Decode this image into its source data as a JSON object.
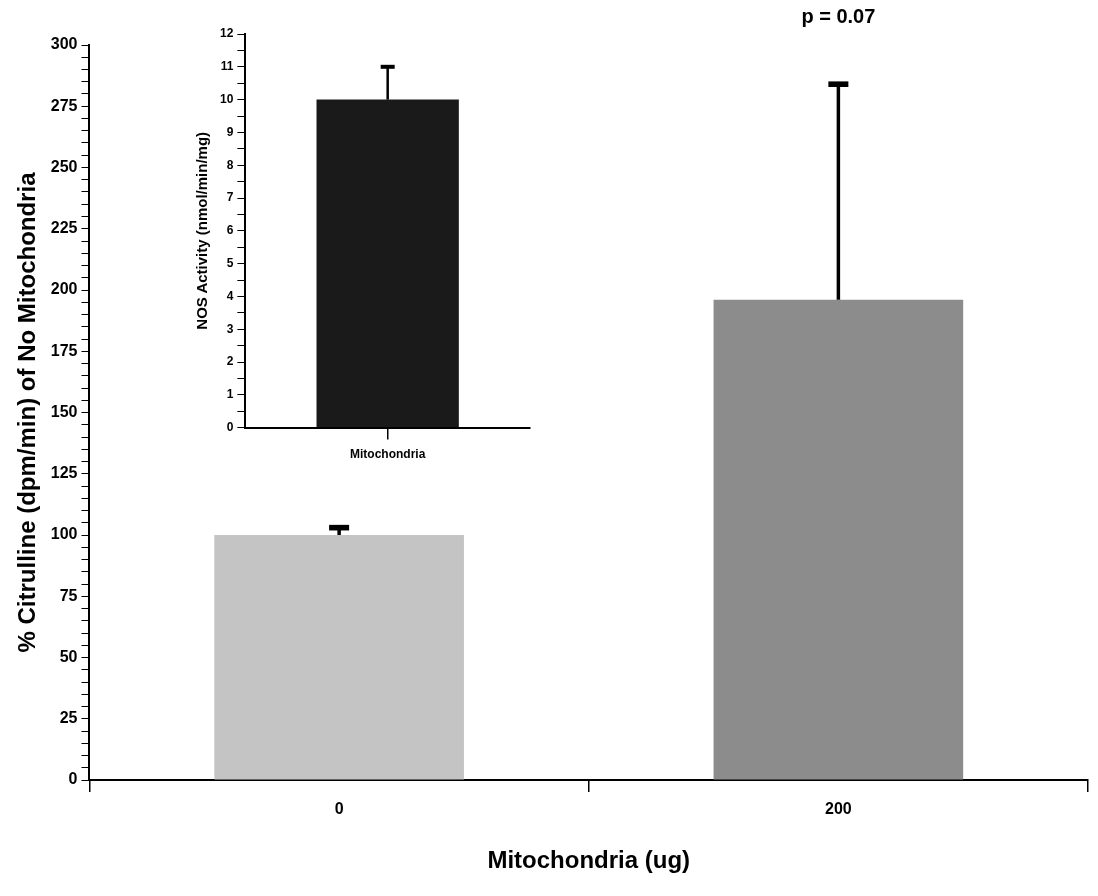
{
  "chart_data": [
    {
      "type": "bar",
      "xlabel": "Mitochondria (ug)",
      "ylabel": "% Citrulline (dpm/min) of No Mitochondria",
      "categories": [
        "0",
        "200"
      ],
      "values": [
        100,
        196
      ],
      "errors": [
        3,
        88
      ],
      "colors": [
        "#c4c4c4",
        "#8c8c8c"
      ],
      "ylim": [
        0,
        300
      ],
      "yticks": [
        0,
        {
          "value": 5,
          "label": null
        },
        {
          "value": 10,
          "label": null
        },
        {
          "value": 15,
          "label": null
        },
        {
          "value": 20,
          "label": null
        },
        25,
        {
          "value": 30,
          "label": null
        },
        {
          "value": 35,
          "label": null
        },
        {
          "value": 40,
          "label": null
        },
        {
          "value": 45,
          "label": null
        },
        50,
        {
          "value": 55,
          "label": null
        },
        {
          "value": 60,
          "label": null
        },
        {
          "value": 65,
          "label": null
        },
        {
          "value": 70,
          "label": null
        },
        75,
        {
          "value": 80,
          "label": null
        },
        {
          "value": 85,
          "label": null
        },
        {
          "value": 90,
          "label": null
        },
        {
          "value": 95,
          "label": null
        },
        100,
        {
          "value": 105,
          "label": null
        },
        {
          "value": 110,
          "label": null
        },
        {
          "value": 115,
          "label": null
        },
        {
          "value": 120,
          "label": null
        },
        125,
        {
          "value": 130,
          "label": null
        },
        {
          "value": 135,
          "label": null
        },
        {
          "value": 140,
          "label": null
        },
        {
          "value": 145,
          "label": null
        },
        150,
        {
          "value": 155,
          "label": null
        },
        {
          "value": 160,
          "label": null
        },
        {
          "value": 165,
          "label": null
        },
        {
          "value": 170,
          "label": null
        },
        175,
        {
          "value": 180,
          "label": null
        },
        {
          "value": 185,
          "label": null
        },
        {
          "value": 190,
          "label": null
        },
        {
          "value": 195,
          "label": null
        },
        200,
        {
          "value": 205,
          "label": null
        },
        {
          "value": 210,
          "label": null
        },
        {
          "value": 215,
          "label": null
        },
        {
          "value": 220,
          "label": null
        },
        225,
        {
          "value": 230,
          "label": null
        },
        {
          "value": 235,
          "label": null
        },
        {
          "value": 240,
          "label": null
        },
        {
          "value": 245,
          "label": null
        },
        250,
        {
          "value": 255,
          "label": null
        },
        {
          "value": 260,
          "label": null
        },
        {
          "value": 265,
          "label": null
        },
        {
          "value": 270,
          "label": null
        },
        275,
        {
          "value": 280,
          "label": null
        },
        {
          "value": 285,
          "label": null
        },
        {
          "value": 290,
          "label": null
        },
        {
          "value": 295,
          "label": null
        },
        300
      ],
      "annotations": [
        "p = 0.07"
      ]
    },
    {
      "type": "bar",
      "ylabel": "NOS Activity (nmol/min/mg)",
      "categories": [
        "Mitochondria"
      ],
      "values": [
        10
      ],
      "errors": [
        1
      ],
      "colors": [
        "#1a1a1a"
      ],
      "ylim": [
        0,
        12
      ],
      "yticks": [
        0,
        {
          "value": 0.5,
          "label": null
        },
        1,
        {
          "value": 1.5,
          "label": null
        },
        2,
        {
          "value": 2.5,
          "label": null
        },
        3,
        {
          "value": 3.5,
          "label": null
        },
        4,
        {
          "value": 4.5,
          "label": null
        },
        5,
        {
          "value": 5.5,
          "label": null
        },
        6,
        {
          "value": 6.5,
          "label": null
        },
        7,
        {
          "value": 7.5,
          "label": null
        },
        8,
        {
          "value": 8.5,
          "label": null
        },
        9,
        {
          "value": 9.5,
          "label": null
        },
        10,
        {
          "value": 10.5,
          "label": null
        },
        11,
        {
          "value": 11.5,
          "label": null
        },
        12
      ]
    }
  ]
}
